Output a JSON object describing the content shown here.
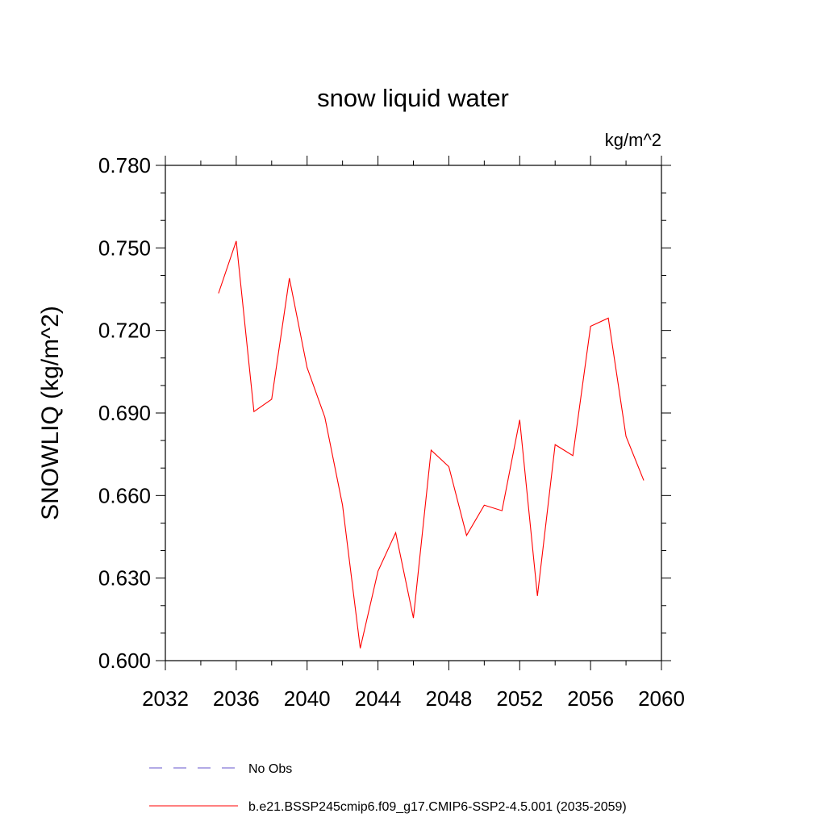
{
  "chart_data": {
    "type": "line",
    "title": "snow liquid water",
    "units_label": "kg/m^2",
    "xlabel": "",
    "ylabel": "SNOWLIQ  (kg/m^2)",
    "xlim": [
      2032,
      2060
    ],
    "ylim": [
      0.6,
      0.78
    ],
    "x_ticks": [
      2032,
      2036,
      2040,
      2044,
      2048,
      2052,
      2056,
      2060
    ],
    "y_ticks": [
      "0.600",
      "0.630",
      "0.660",
      "0.690",
      "0.720",
      "0.750",
      "0.780"
    ],
    "grid": false,
    "legend_position": "bottom",
    "series": [
      {
        "name": "b.e21.BSSP245cmip6.f09_g17.CMIP6-SSP2-4.5.001 (2035-2059)",
        "color": "#ff0000",
        "dash": "solid",
        "x": [
          2035,
          2036,
          2037,
          2038,
          2039,
          2040,
          2041,
          2042,
          2043,
          2044,
          2045,
          2046,
          2047,
          2048,
          2049,
          2050,
          2051,
          2052,
          2053,
          2054,
          2055,
          2056,
          2057,
          2058,
          2059
        ],
        "values": [
          0.7335,
          0.7525,
          0.6905,
          0.695,
          0.739,
          0.7065,
          0.6885,
          0.6565,
          0.6045,
          0.6325,
          0.6465,
          0.6155,
          0.6765,
          0.6705,
          0.6455,
          0.6565,
          0.6545,
          0.6875,
          0.6235,
          0.6785,
          0.6745,
          0.7215,
          0.7245,
          0.6815,
          0.6655
        ]
      }
    ],
    "legend": [
      {
        "label": "No Obs",
        "color": "#6655cc",
        "dash": "dashed"
      },
      {
        "label": "b.e21.BSSP245cmip6.f09_g17.CMIP6-SSP2-4.5.001 (2035-2059)",
        "color": "#ff0000",
        "dash": "solid"
      }
    ]
  }
}
